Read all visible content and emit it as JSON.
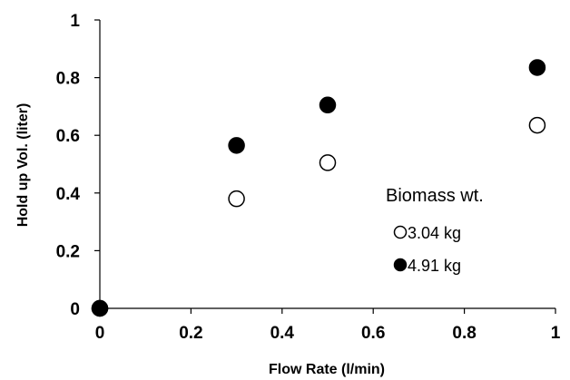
{
  "chart_data": {
    "type": "scatter",
    "title": "",
    "xlabel": "Flow Rate (l/min)",
    "ylabel": "Hold up Vol. (liter)",
    "xlim": [
      0,
      1
    ],
    "ylim": [
      0,
      1
    ],
    "xticks": [
      "0",
      "0.2",
      "0.4",
      "0.6",
      "0.8",
      "1"
    ],
    "yticks": [
      "0",
      "0.2",
      "0.4",
      "0.6",
      "0.8",
      "1"
    ],
    "grid": false,
    "legend_title": "Biomass wt.",
    "legend_position": "inside-right",
    "series": [
      {
        "name": "3.04 kg",
        "marker": "open-circle",
        "color": "#000000",
        "x": [
          0,
          0.3,
          0.5,
          0.96
        ],
        "y": [
          0,
          0.38,
          0.505,
          0.635
        ]
      },
      {
        "name": "4.91 kg",
        "marker": "filled-circle",
        "color": "#000000",
        "x": [
          0,
          0.3,
          0.5,
          0.96
        ],
        "y": [
          0,
          0.565,
          0.705,
          0.835
        ]
      }
    ]
  }
}
